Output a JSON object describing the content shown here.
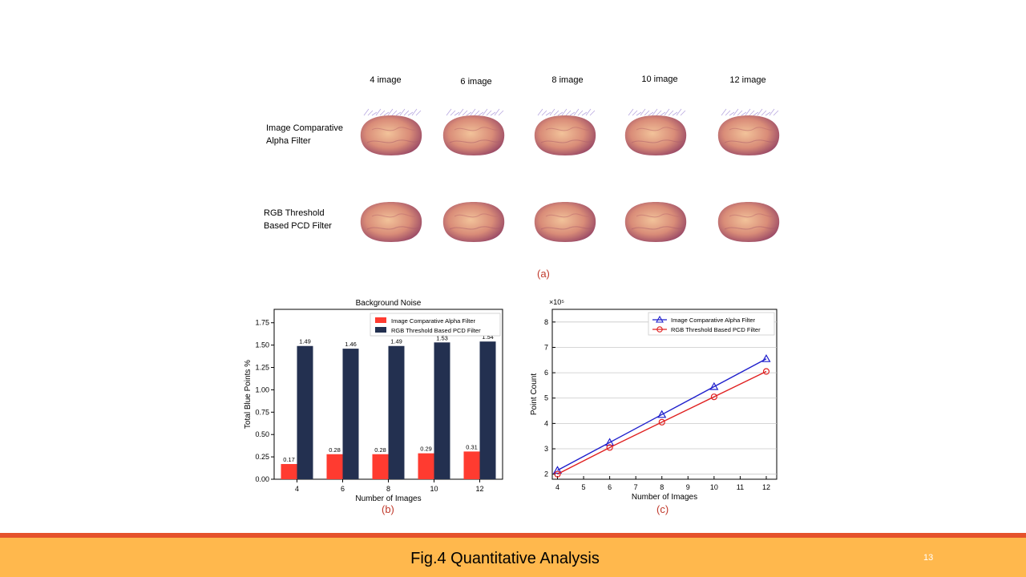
{
  "figure_a": {
    "columns": [
      "4 image",
      "6 image",
      "8 image",
      "10 image",
      "12 image"
    ],
    "rows": [
      {
        "line1": "Image Comparative",
        "line2": "Alpha Filter"
      },
      {
        "line1": "RGB Threshold",
        "line2": "Based PCD Filter"
      }
    ],
    "caption": "(a)"
  },
  "caption_b": "(b)",
  "caption_c": "(c)",
  "chart_data": [
    {
      "type": "bar",
      "title": "Background Noise",
      "xlabel": "Number of Images",
      "ylabel": "Total Blue Points %",
      "categories": [
        "4",
        "6",
        "8",
        "10",
        "12"
      ],
      "ylim": [
        0,
        1.9
      ],
      "yticks": [
        0.0,
        0.25,
        0.5,
        0.75,
        1.0,
        1.25,
        1.5,
        1.75
      ],
      "ytick_labels": [
        "0.00",
        "0.25",
        "0.50",
        "0.75",
        "1.00",
        "1.25",
        "1.50",
        "1.75"
      ],
      "legend_position": "top-right",
      "series": [
        {
          "name": "Image Comparative Alpha Filter",
          "color": "#ff3b30",
          "values": [
            0.17,
            0.28,
            0.28,
            0.29,
            0.31
          ],
          "labels": [
            "0.17",
            "0.28",
            "0.28",
            "0.29",
            "0.31"
          ]
        },
        {
          "name": "RGB Threshold Based PCD Filter",
          "color": "#233050",
          "values": [
            1.49,
            1.46,
            1.49,
            1.53,
            1.54
          ],
          "labels": [
            "1.49",
            "1.46",
            "1.49",
            "1.53",
            "1.54"
          ]
        }
      ]
    },
    {
      "type": "line",
      "xlabel": "Number of Images",
      "ylabel": "Point Count",
      "scale_label": "×10⁵",
      "xlim": [
        3.8,
        12.4
      ],
      "ylim": [
        1.8,
        8.5
      ],
      "xticks": [
        4,
        5,
        6,
        7,
        8,
        9,
        10,
        11,
        12
      ],
      "yticks": [
        2,
        3,
        4,
        5,
        6,
        7,
        8
      ],
      "grid": true,
      "legend_position": "top-right",
      "x": [
        4,
        6,
        8,
        10,
        12
      ],
      "series": [
        {
          "name": "Image Comparative Alpha Filter",
          "color": "#1f1fcc",
          "marker": "triangle",
          "values": [
            2.15,
            3.25,
            4.35,
            5.45,
            6.55
          ]
        },
        {
          "name": "RGB Threshold Based PCD Filter",
          "color": "#e02020",
          "marker": "circle",
          "values": [
            2.0,
            3.05,
            4.05,
            5.05,
            6.05
          ]
        }
      ]
    }
  ],
  "footer": {
    "title": "Fig.4 Quantitative Analysis",
    "page": "13"
  }
}
